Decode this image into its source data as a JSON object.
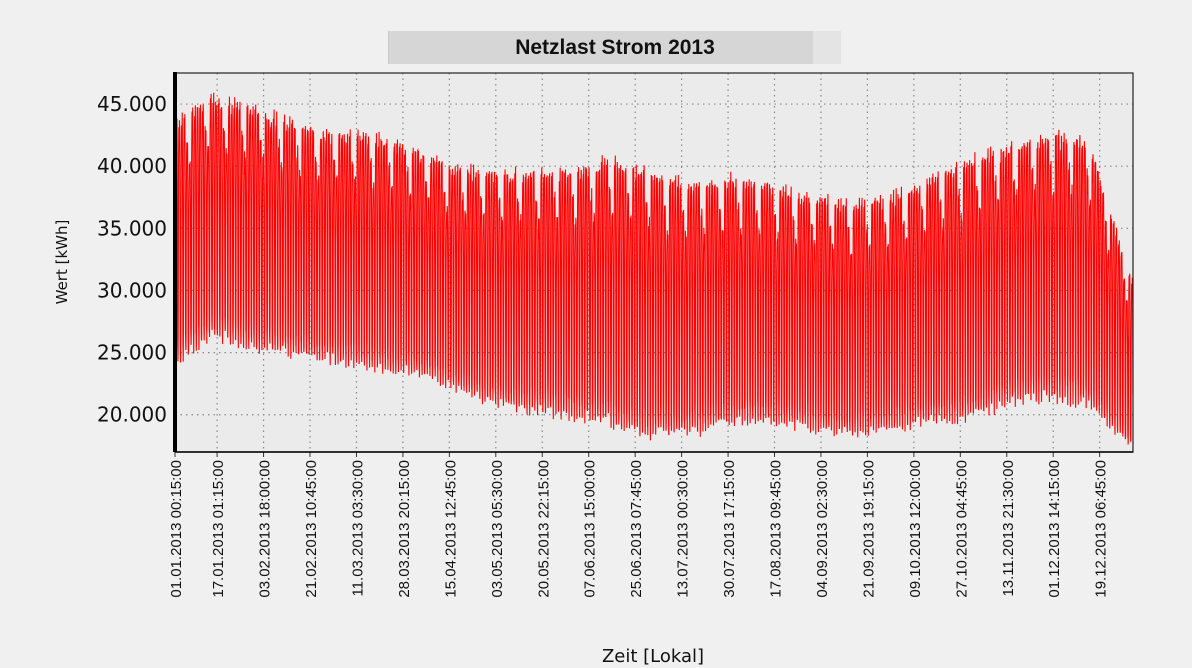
{
  "chart_data": {
    "type": "line",
    "title": "Netzlast Strom 2013",
    "xlabel": "Zeit [Lokal]",
    "ylabel": "Wert [kWh]",
    "ylim": [
      17000,
      47500
    ],
    "yticks": [
      "20.000",
      "25.000",
      "30.000",
      "35.000",
      "40.000",
      "45.000"
    ],
    "ytick_values": [
      20000,
      25000,
      30000,
      35000,
      40000,
      45000
    ],
    "xticks": [
      "01.01.2013 00:15:00",
      "17.01.2013 01:15:00",
      "03.02.2013 18:00:00",
      "21.02.2013 10:45:00",
      "11.03.2013 03:30:00",
      "28.03.2013 20:15:00",
      "15.04.2013 12:45:00",
      "03.05.2013 05:30:00",
      "20.05.2013 22:15:00",
      "07.06.2013 15:00:00",
      "25.06.2013 07:45:00",
      "13.07.2013 00:30:00",
      "30.07.2013 17:15:00",
      "17.08.2013 09:45:00",
      "04.09.2013 02:30:00",
      "21.09.2013 19:15:00",
      "09.10.2013 12:00:00",
      "27.10.2013 04:45:00",
      "13.11.2013 21:30:00",
      "01.12.2013 14:15:00",
      "19.12.2013 06:45:00"
    ],
    "xlim": [
      "01.01.2013 00:15",
      "31.12.2013 23:45"
    ],
    "grid": true,
    "series": [
      {
        "color": "#ff0000",
        "daily_envelope": {
          "dates": [
            "01.01",
            "15.01",
            "01.02",
            "15.02",
            "01.03",
            "15.03",
            "01.04",
            "15.04",
            "01.05",
            "15.05",
            "01.06",
            "15.06",
            "01.07",
            "15.07",
            "01.08",
            "15.08",
            "01.09",
            "15.09",
            "01.10",
            "15.10",
            "01.11",
            "15.11",
            "01.12",
            "15.12",
            "31.12"
          ],
          "max": [
            43500,
            45500,
            44500,
            43500,
            42500,
            42500,
            41500,
            40000,
            39500,
            39500,
            39500,
            40500,
            39500,
            38500,
            39000,
            38500,
            37500,
            37000,
            37500,
            39000,
            40500,
            41500,
            42500,
            42000,
            31000
          ],
          "min": [
            24000,
            26500,
            25500,
            25000,
            24500,
            24000,
            23500,
            22500,
            21000,
            20500,
            20000,
            19500,
            18500,
            18500,
            19500,
            19500,
            19000,
            18500,
            19000,
            19500,
            20000,
            21000,
            21500,
            21000,
            17500
          ]
        }
      }
    ]
  }
}
